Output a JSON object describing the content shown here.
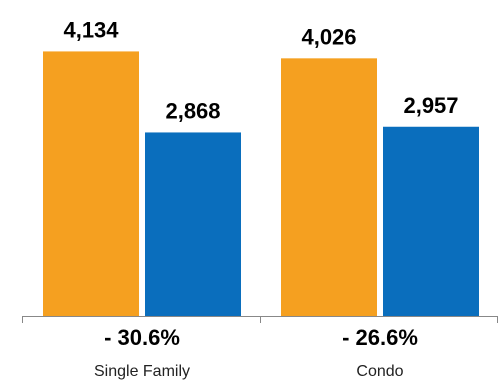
{
  "chart_data": {
    "type": "bar",
    "categories": [
      "Single Family",
      "Condo"
    ],
    "series": [
      {
        "values": [
          4134,
          4026
        ],
        "color": "#F5A020"
      },
      {
        "values": [
          2868,
          2957
        ],
        "color": "#0A6EBD"
      }
    ],
    "value_labels": [
      [
        "4,134",
        "4,026"
      ],
      [
        "2,868",
        "2,957"
      ]
    ],
    "change_labels": [
      "- 30.6%",
      "- 26.6%"
    ],
    "ylim": [
      0,
      4500
    ],
    "grid": false,
    "legend": "none"
  }
}
